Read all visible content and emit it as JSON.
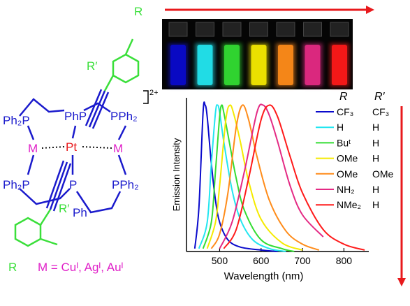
{
  "structure": {
    "labels": [
      "R",
      "R′",
      "2+",
      "Ph₂P",
      "PhP",
      "PPh₂",
      "M",
      "Pt",
      "M",
      "Ph₂P",
      "P",
      "PPh₂",
      "Ph",
      "R′",
      "R",
      "M = Cuᴵ, Agᴵ, Auᴵ"
    ]
  },
  "chart_data": {
    "type": "line",
    "x_label": "Wavelength (nm)",
    "y_label": "Emission Intensity",
    "xlim": [
      420,
      860
    ],
    "xticks": [
      500,
      600,
      700,
      800
    ],
    "ylim": [
      0,
      1.05
    ],
    "legend_headers": [
      "R",
      "R′"
    ],
    "series": [
      {
        "name": "CF₃",
        "r_prime": "CF₃",
        "color": "#0a0acc",
        "x": [
          440,
          450,
          460,
          465,
          470,
          480,
          490,
          500,
          520,
          550,
          600,
          640
        ],
        "values": [
          0.02,
          0.3,
          0.95,
          1,
          0.92,
          0.6,
          0.35,
          0.2,
          0.08,
          0.03,
          0.01,
          0
        ]
      },
      {
        "name": "H",
        "r_prime": "H",
        "color": "#22e6f0",
        "x": [
          450,
          470,
          480,
          490,
          495,
          500,
          510,
          530,
          550,
          580,
          620,
          660
        ],
        "values": [
          0.02,
          0.2,
          0.6,
          0.95,
          1,
          0.95,
          0.75,
          0.42,
          0.22,
          0.08,
          0.02,
          0
        ]
      },
      {
        "name": "Buᵗ",
        "r_prime": "H",
        "color": "#33dd33",
        "x": [
          460,
          480,
          490,
          500,
          505,
          510,
          520,
          540,
          560,
          600,
          650,
          680
        ],
        "values": [
          0.02,
          0.2,
          0.55,
          0.92,
          1,
          0.95,
          0.8,
          0.5,
          0.28,
          0.08,
          0.02,
          0
        ]
      },
      {
        "name": "OMe",
        "r_prime": "H",
        "color": "#f5ea00",
        "x": [
          470,
          490,
          500,
          515,
          525,
          535,
          550,
          570,
          600,
          650,
          700
        ],
        "values": [
          0.02,
          0.2,
          0.45,
          0.9,
          1,
          0.93,
          0.75,
          0.48,
          0.22,
          0.06,
          0.01
        ]
      },
      {
        "name": "OMe",
        "r_prime": "OMe",
        "color": "#ff8c1a",
        "x": [
          480,
          500,
          520,
          540,
          555,
          570,
          590,
          620,
          660,
          700,
          740
        ],
        "values": [
          0.02,
          0.12,
          0.4,
          0.85,
          1,
          0.9,
          0.65,
          0.35,
          0.14,
          0.05,
          0.01
        ]
      },
      {
        "name": "NH₂",
        "r_prime": "H",
        "color": "#e42a84",
        "x": [
          500,
          530,
          560,
          590,
          605,
          620,
          640,
          670,
          700,
          750
        ],
        "values": [
          0.02,
          0.2,
          0.55,
          0.95,
          1,
          0.93,
          0.75,
          0.45,
          0.25,
          0.1
        ]
      },
      {
        "name": "NMe₂",
        "r_prime": "H",
        "color": "#ff1a1a",
        "x": [
          510,
          540,
          570,
          600,
          620,
          640,
          670,
          700,
          750,
          800,
          850
        ],
        "values": [
          0.02,
          0.15,
          0.5,
          0.9,
          1,
          0.92,
          0.65,
          0.4,
          0.15,
          0.05,
          0.01
        ]
      }
    ]
  }
}
